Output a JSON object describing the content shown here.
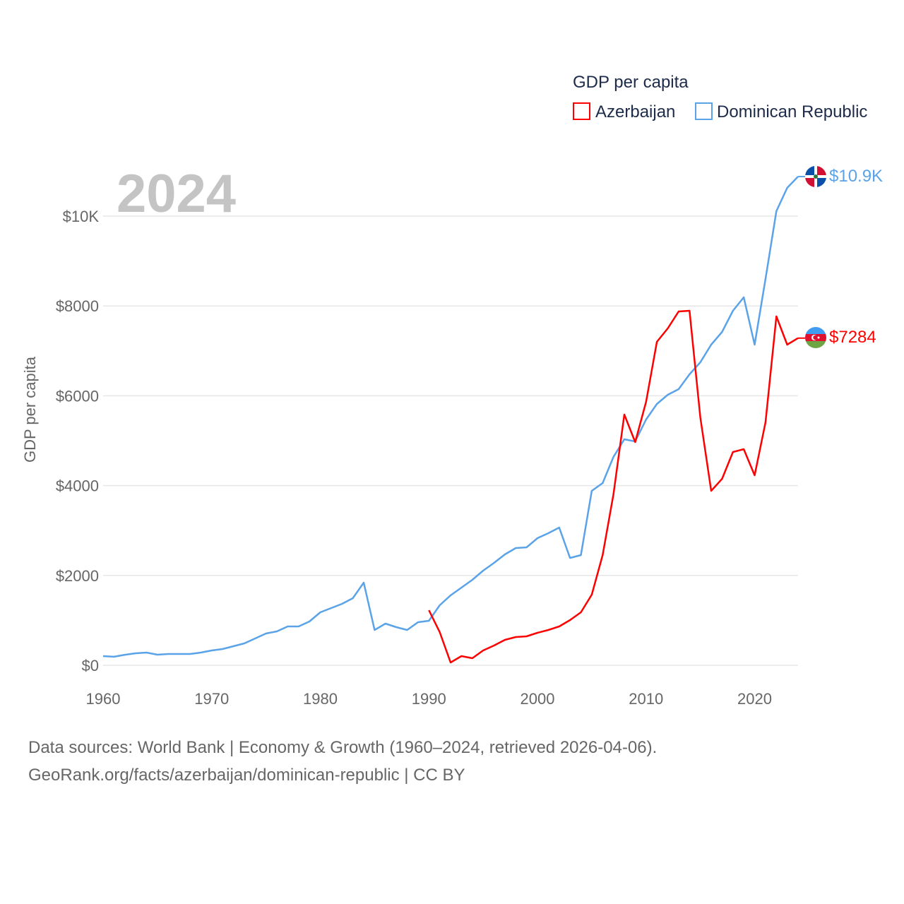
{
  "chart_data": {
    "type": "line",
    "title": "GDP per capita",
    "year_label": "2024",
    "ylabel": "GDP per capita",
    "xlabel": "",
    "xlim": [
      1960,
      2024
    ],
    "ylim": [
      0,
      10880
    ],
    "x_ticks": [
      1960,
      1970,
      1980,
      1990,
      2000,
      2010,
      2020
    ],
    "x_tick_labels": [
      "1960",
      "1970",
      "1980",
      "1990",
      "2000",
      "2010",
      "2020"
    ],
    "y_ticks": [
      0,
      2000,
      4000,
      6000,
      8000,
      10000
    ],
    "y_tick_labels": [
      "$0",
      "$2000",
      "$4000",
      "$6000",
      "$8000",
      "$10K"
    ],
    "grid": true,
    "legend_position": "top-right",
    "series": [
      {
        "name": "Azerbaijan",
        "color": "#ff0000",
        "end_label": "$7284",
        "flag": "azerbaijan-flag",
        "start_year": 1990,
        "values": [
          1226,
          739,
          63,
          204,
          157,
          330,
          440,
          566,
          629,
          645,
          723,
          786,
          865,
          1006,
          1179,
          1572,
          2453,
          3805,
          5582,
          4969,
          5865,
          7201,
          7500,
          7877,
          7893,
          5519,
          3884,
          4151,
          4748,
          4811,
          4230,
          5409,
          7767,
          7138,
          7284
        ]
      },
      {
        "name": "Dominican Republic",
        "color": "#5aa3e8",
        "end_label": "$10.9K",
        "flag": "dominican-republic-flag",
        "start_year": 1960,
        "values": [
          204,
          190,
          235,
          267,
          283,
          236,
          252,
          252,
          252,
          283,
          330,
          362,
          425,
          487,
          597,
          707,
          755,
          865,
          865,
          975,
          1179,
          1274,
          1368,
          1494,
          1840,
          786,
          928,
          849,
          786,
          959,
          991,
          1336,
          1557,
          1730,
          1903,
          2107,
          2280,
          2469,
          2610,
          2626,
          2830,
          2940,
          3066,
          2390,
          2453,
          3884,
          4057,
          4638,
          5031,
          4984,
          5472,
          5818,
          6022,
          6148,
          6478,
          6745,
          7138,
          7421,
          7893,
          8192,
          7138,
          8600,
          10110,
          10629,
          10880
        ]
      }
    ]
  },
  "footer": {
    "line1": "Data sources: World Bank | Economy & Growth (1960–2024, retrieved 2026-04-06).",
    "line2": "GeoRank.org/facts/azerbaijan/dominican-republic | CC BY"
  }
}
